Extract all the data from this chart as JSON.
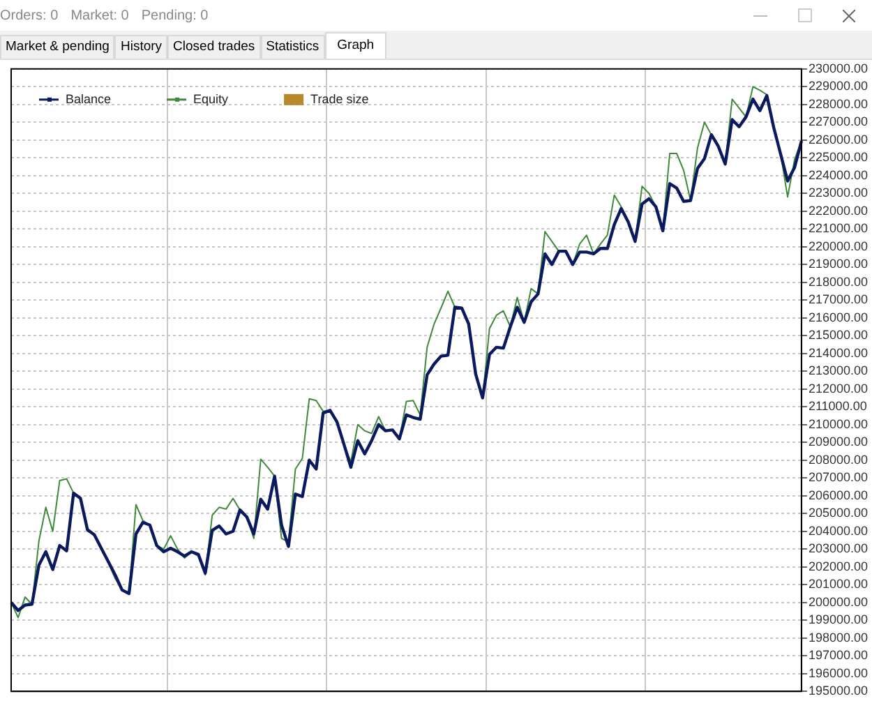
{
  "chart_data": {
    "type": "line",
    "annotations": [
      "Orders: 0",
      "Market: 0",
      "Pending: 0",
      "Market & pending",
      "History",
      "Closed trades",
      "Statistics",
      "Graph"
    ],
    "categories": [
      null,
      null,
      null,
      null,
      null,
      null,
      null,
      null,
      null,
      null,
      null,
      null,
      null,
      null,
      null,
      null,
      null,
      null,
      null,
      null,
      null,
      null,
      null,
      null,
      null,
      null,
      null,
      null,
      null,
      null,
      null,
      null,
      null,
      null,
      null,
      null,
      null,
      null,
      null,
      null,
      null,
      null,
      null,
      null,
      null,
      null,
      null,
      null,
      null,
      null,
      null,
      null,
      null,
      null,
      null,
      null,
      null,
      null,
      null,
      null,
      null,
      null,
      null,
      null,
      null,
      null,
      null,
      null,
      null,
      null,
      null,
      null,
      null,
      null,
      null,
      null,
      null,
      null,
      null,
      null,
      null,
      null,
      null,
      null,
      null,
      null,
      null,
      null,
      null,
      null,
      null,
      null,
      null,
      null,
      null,
      null,
      null,
      null,
      null,
      null,
      null,
      null,
      null,
      null,
      null,
      null,
      null,
      null,
      null,
      null,
      null,
      null,
      null,
      null,
      null
    ],
    "series": [
      {
        "name": "Balance",
        "color": "#0b1a5e",
        "values": [
          200000,
          199550,
          199850,
          199900,
          202100,
          202850,
          201850,
          203200,
          202900,
          206150,
          205850,
          204100,
          203800,
          203050,
          202300,
          201550,
          200700,
          200500,
          203850,
          204500,
          204350,
          203200,
          202850,
          203050,
          202850,
          202600,
          202850,
          202700,
          201650,
          204050,
          204300,
          203850,
          204000,
          205200,
          204800,
          203850,
          205800,
          205250,
          207100,
          204350,
          203150,
          206100,
          205950,
          208000,
          207500,
          210650,
          210800,
          210150,
          208900,
          207600,
          209100,
          208350,
          209100,
          210000,
          209650,
          209700,
          209200,
          210550,
          210400,
          210300,
          212800,
          213400,
          213850,
          213900,
          216600,
          216550,
          215650,
          212850,
          211500,
          213950,
          214350,
          214300,
          215500,
          216600,
          215750,
          216900,
          217350,
          219600,
          219000,
          219750,
          219750,
          219000,
          219700,
          219700,
          219600,
          219900,
          219900,
          221250,
          222150,
          221400,
          220300,
          222400,
          222700,
          222250,
          220900,
          223550,
          223300,
          222550,
          222600,
          224400,
          224950,
          226300,
          225650,
          224650,
          227150,
          226750,
          227300,
          228300,
          227650,
          228500,
          226700,
          225200,
          223700,
          224450,
          225950
        ]
      },
      {
        "name": "Equity",
        "color": "#3f8a3a",
        "values": [
          200000,
          199150,
          200300,
          199900,
          203450,
          205350,
          204000,
          206850,
          206950,
          206150,
          205850,
          204000,
          203800,
          203000,
          202250,
          201350,
          200700,
          200500,
          205500,
          204600,
          204350,
          203200,
          203000,
          203750,
          203000,
          202500,
          202850,
          202600,
          201550,
          204900,
          205350,
          205250,
          205850,
          205200,
          204800,
          203600,
          208050,
          207600,
          207100,
          203600,
          203400,
          207500,
          208100,
          211450,
          211350,
          210750,
          210800,
          210150,
          208900,
          207900,
          210000,
          209650,
          209500,
          210450,
          209650,
          209700,
          209200,
          211300,
          211350,
          210550,
          214350,
          215650,
          216550,
          217500,
          216600,
          216550,
          215650,
          212850,
          211500,
          215400,
          216150,
          216400,
          215500,
          217150,
          215750,
          217650,
          217350,
          220850,
          220300,
          219750,
          219750,
          219000,
          220150,
          220650,
          219600,
          220150,
          220650,
          222900,
          222250,
          221400,
          220300,
          223400,
          223000,
          222250,
          220900,
          225250,
          225250,
          224300,
          222600,
          225550,
          227000,
          226300,
          225650,
          224650,
          228300,
          227800,
          227300,
          229000,
          228800,
          228550,
          226700,
          225200,
          222800,
          224900,
          225950
        ]
      },
      {
        "name": "Trade size",
        "type": "bar",
        "color": "#b8892a",
        "values": [
          null,
          null,
          null,
          null,
          null,
          null,
          null,
          null,
          null,
          null,
          null,
          null,
          null,
          null,
          null,
          null,
          null,
          null,
          null,
          null,
          null,
          null,
          null,
          null,
          null,
          null,
          null,
          null,
          null,
          null,
          null,
          null,
          null,
          null,
          null,
          null,
          null,
          null,
          null,
          null,
          null,
          null,
          null,
          null,
          null,
          null,
          null,
          null,
          null,
          null,
          null,
          null,
          null,
          null,
          null,
          null,
          null,
          null,
          null,
          null,
          null,
          null,
          null,
          null,
          null,
          null,
          null,
          null,
          null,
          null,
          null,
          null,
          null,
          null,
          null,
          null,
          null,
          null,
          null,
          null,
          null,
          null,
          null,
          null,
          null,
          null,
          null,
          null,
          null,
          null,
          null,
          null,
          null,
          null,
          null,
          null,
          null,
          null,
          null,
          null,
          null,
          null,
          null,
          null,
          null,
          null,
          null,
          null,
          null,
          null,
          null,
          null,
          null,
          null,
          null
        ]
      }
    ],
    "ylim": [
      195000,
      230000
    ],
    "yticks": [
      {
        "value": 195000,
        "label": "195000.00"
      },
      {
        "value": 196000,
        "label": "196000.00"
      },
      {
        "value": 197000,
        "label": "197000.00"
      },
      {
        "value": 198000,
        "label": "198000.00"
      },
      {
        "value": 199000,
        "label": "199000.00"
      },
      {
        "value": 200000,
        "label": "200000.00"
      },
      {
        "value": 201000,
        "label": "201000.00"
      },
      {
        "value": 202000,
        "label": "202000.00"
      },
      {
        "value": 203000,
        "label": "203000.00"
      },
      {
        "value": 204000,
        "label": "204000.00"
      },
      {
        "value": 205000,
        "label": "205000.00"
      },
      {
        "value": 206000,
        "label": "206000.00"
      },
      {
        "value": 207000,
        "label": "207000.00"
      },
      {
        "value": 208000,
        "label": "208000.00"
      },
      {
        "value": 209000,
        "label": "209000.00"
      },
      {
        "value": 210000,
        "label": "210000.00"
      },
      {
        "value": 211000,
        "label": "211000.00"
      },
      {
        "value": 212000,
        "label": "212000.00"
      },
      {
        "value": 213000,
        "label": "213000.00"
      },
      {
        "value": 214000,
        "label": "214000.00"
      },
      {
        "value": 215000,
        "label": "215000.00"
      },
      {
        "value": 216000,
        "label": "216000.00"
      },
      {
        "value": 217000,
        "label": "217000.00"
      },
      {
        "value": 218000,
        "label": "218000.00"
      },
      {
        "value": 219000,
        "label": "219000.00"
      },
      {
        "value": 220000,
        "label": "220000.00"
      },
      {
        "value": 221000,
        "label": "221000.00"
      },
      {
        "value": 222000,
        "label": "222000.00"
      },
      {
        "value": 223000,
        "label": "223000.00"
      },
      {
        "value": 224000,
        "label": "224000.00"
      },
      {
        "value": 225000,
        "label": "225000.00"
      },
      {
        "value": 226000,
        "label": "226000.00"
      },
      {
        "value": 227000,
        "label": "227000.00"
      },
      {
        "value": 228000,
        "label": "228000.00"
      },
      {
        "value": 229000,
        "label": "229000.00"
      },
      {
        "value": 230000,
        "label": "230000.00"
      }
    ],
    "grid": true,
    "legend": "top left",
    "marker": "none",
    "line_style": "solid"
  }
}
